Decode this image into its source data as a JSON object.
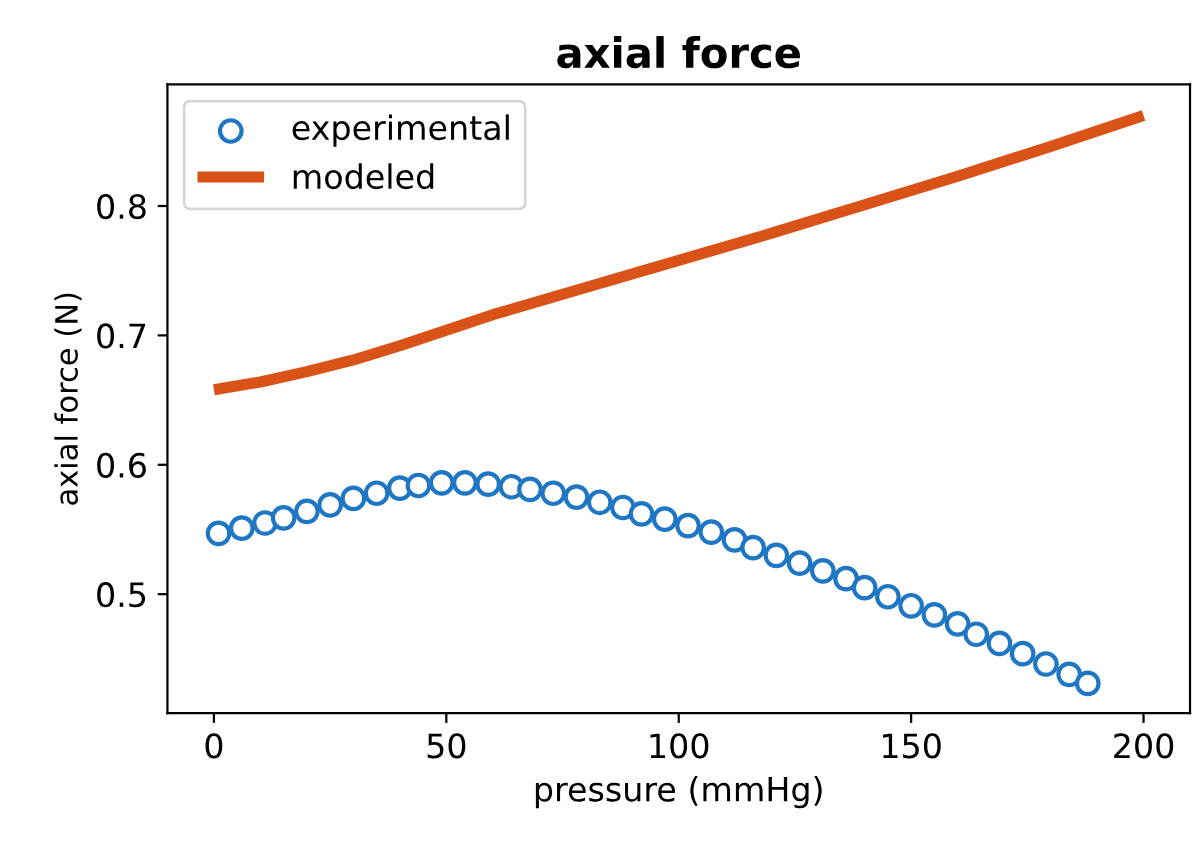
{
  "chart_data": {
    "type": "line",
    "title": "axial force",
    "xlabel": "pressure (mmHg)",
    "ylabel": "axial force (N)",
    "xlim": [
      -10,
      210
    ],
    "ylim": [
      0.408,
      0.894
    ],
    "xticks": [
      0,
      50,
      100,
      150,
      200
    ],
    "yticks": [
      0.5,
      0.6,
      0.7,
      0.8
    ],
    "grid": false,
    "legend": "top left",
    "series": [
      {
        "name": "experimental",
        "type": "scatter",
        "marker": "circle",
        "color": "#1f77c4",
        "x": [
          1,
          6,
          11,
          15,
          20,
          25,
          30,
          35,
          40,
          44,
          49,
          54,
          59,
          64,
          68,
          73,
          78,
          83,
          88,
          92,
          97,
          102,
          107,
          112,
          116,
          121,
          126,
          131,
          136,
          140,
          145,
          150,
          155,
          160,
          164,
          169,
          174,
          179,
          184,
          188
        ],
        "values": [
          0.547,
          0.551,
          0.555,
          0.559,
          0.564,
          0.569,
          0.574,
          0.578,
          0.582,
          0.584,
          0.586,
          0.586,
          0.585,
          0.583,
          0.581,
          0.578,
          0.575,
          0.571,
          0.567,
          0.562,
          0.558,
          0.553,
          0.548,
          0.542,
          0.536,
          0.53,
          0.524,
          0.518,
          0.512,
          0.505,
          0.498,
          0.491,
          0.484,
          0.477,
          0.469,
          0.462,
          0.454,
          0.446,
          0.438,
          0.431
        ]
      },
      {
        "name": "modeled",
        "type": "line",
        "line_style": "solid",
        "color": "#d95319",
        "x": [
          0,
          10,
          20,
          30,
          40,
          50,
          60,
          80,
          100,
          120,
          140,
          160,
          180,
          200
        ],
        "values": [
          0.658,
          0.664,
          0.672,
          0.681,
          0.692,
          0.704,
          0.716,
          0.737,
          0.758,
          0.779,
          0.801,
          0.823,
          0.846,
          0.87
        ]
      }
    ]
  }
}
